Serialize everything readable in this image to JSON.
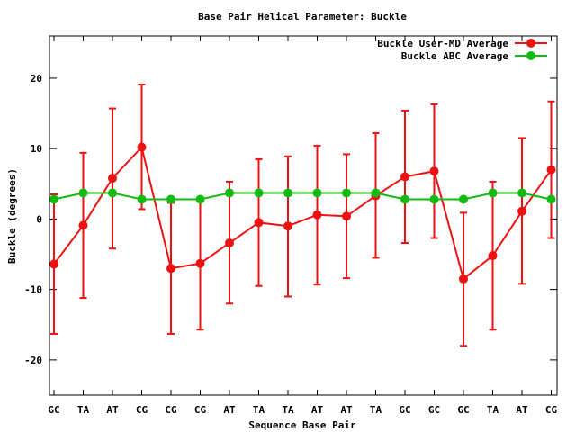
{
  "chart_data": {
    "type": "line",
    "title": "Base Pair Helical Parameter: Buckle",
    "xlabel": "Sequence Base Pair",
    "ylabel": "Buckle (degrees)",
    "categories": [
      "GC",
      "TA",
      "AT",
      "CG",
      "CG",
      "CG",
      "AT",
      "TA",
      "TA",
      "AT",
      "AT",
      "TA",
      "GC",
      "GC",
      "GC",
      "TA",
      "AT",
      "CG"
    ],
    "ylim": [
      -25,
      26
    ],
    "yticks": [
      -20,
      -10,
      0,
      10,
      20
    ],
    "grid": false,
    "legend_position": "top-right",
    "series": [
      {
        "name": "Buckle User-MD Average",
        "color": "#ee1111",
        "values": [
          -6.4,
          -0.9,
          5.8,
          10.2,
          -7.0,
          -6.3,
          -3.4,
          -0.5,
          -1.0,
          0.6,
          0.4,
          3.3,
          6.0,
          6.8,
          -8.5,
          -5.2,
          1.1,
          7.0
        ],
        "err_low": [
          -16.3,
          -11.2,
          -4.2,
          1.4,
          -16.3,
          -15.7,
          -12.0,
          -9.5,
          -11.0,
          -9.3,
          -8.4,
          -5.5,
          -3.4,
          -2.7,
          -18.0,
          -15.7,
          -9.2,
          -2.7
        ],
        "err_high": [
          3.5,
          9.4,
          15.7,
          19.1,
          2.3,
          3.1,
          5.3,
          8.5,
          8.9,
          10.4,
          9.2,
          12.2,
          15.4,
          16.3,
          0.9,
          5.3,
          11.5,
          16.7
        ]
      },
      {
        "name": "Buckle ABC Average",
        "color": "#11bb11",
        "values": [
          2.8,
          3.7,
          3.7,
          2.8,
          2.8,
          2.8,
          3.7,
          3.7,
          3.7,
          3.7,
          3.7,
          3.7,
          2.8,
          2.8,
          2.8,
          3.7,
          3.7,
          2.8
        ]
      }
    ]
  }
}
